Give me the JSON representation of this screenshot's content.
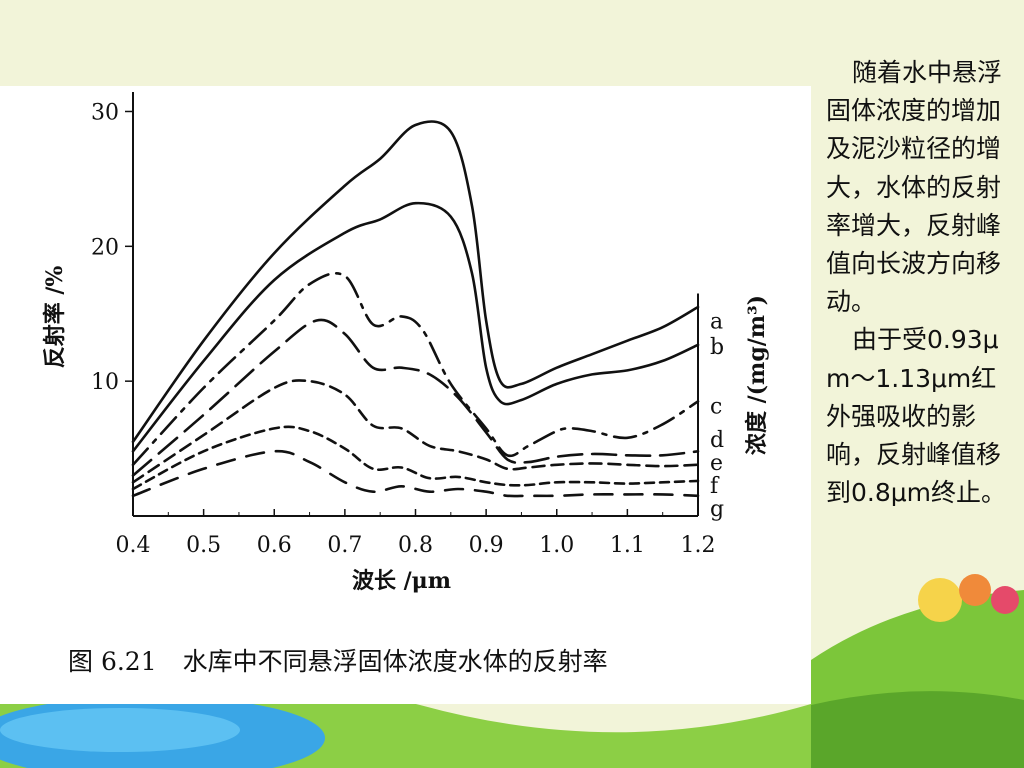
{
  "caption": {
    "figure_number": "图 6.21",
    "title": "水库中不同悬浮固体浓度水体的反射率"
  },
  "side_text": {
    "para1": "随着水中悬浮固体浓度的增加及泥沙粒径的增大，水体的反射率增大，反射峰值向长波方向移动。",
    "para2": "由于受0.93μm～1.13μm红外强吸收的影响，反射峰值移到0.8μm终止。"
  },
  "colors": {
    "background": "#f2f4d9",
    "grass": "#7cc63a",
    "grass_dark": "#5aa62a",
    "water": "#3aa6e6",
    "ink": "#111111"
  },
  "chart_data": {
    "type": "line",
    "xlabel": "波长 /μm",
    "ylabel": "反射率 /%",
    "y2label": "浓度 /(mg/m³)",
    "xlim": [
      0.4,
      1.2
    ],
    "ylim": [
      0,
      31
    ],
    "x_ticks": [
      "0.4",
      "0.5",
      "0.6",
      "0.7",
      "0.8",
      "0.9",
      "1.0",
      "1.1",
      "1.2"
    ],
    "y_ticks": [
      "10",
      "20",
      "30"
    ],
    "y_tick_values": [
      10,
      20,
      30
    ],
    "grid": false,
    "series": [
      {
        "name": "a",
        "style": "solid",
        "x": [
          0.4,
          0.5,
          0.6,
          0.7,
          0.75,
          0.8,
          0.85,
          0.88,
          0.9,
          0.92,
          0.95,
          1.0,
          1.05,
          1.1,
          1.15,
          1.2
        ],
        "y": [
          5.5,
          13.0,
          19.5,
          24.5,
          26.5,
          29.0,
          28.5,
          23.0,
          14.5,
          10.0,
          9.8,
          11.0,
          12.0,
          13.0,
          14.0,
          15.5
        ]
      },
      {
        "name": "b",
        "style": "solid",
        "x": [
          0.4,
          0.5,
          0.6,
          0.7,
          0.75,
          0.8,
          0.85,
          0.88,
          0.9,
          0.92,
          0.95,
          1.0,
          1.05,
          1.1,
          1.15,
          1.2
        ],
        "y": [
          4.8,
          11.5,
          17.5,
          21.0,
          22.0,
          23.2,
          22.2,
          18.0,
          11.0,
          8.5,
          8.6,
          9.8,
          10.5,
          10.8,
          11.5,
          12.7
        ]
      },
      {
        "name": "c",
        "style": "dash-dot",
        "x": [
          0.4,
          0.5,
          0.6,
          0.65,
          0.7,
          0.74,
          0.78,
          0.81,
          0.85,
          0.9,
          0.93,
          0.96,
          1.0,
          1.02,
          1.05,
          1.1,
          1.15,
          1.2
        ],
        "y": [
          3.8,
          9.5,
          14.5,
          17.2,
          17.8,
          14.2,
          14.8,
          13.8,
          9.8,
          6.5,
          4.5,
          5.2,
          6.3,
          6.5,
          6.3,
          5.8,
          6.8,
          8.5
        ]
      },
      {
        "name": "d",
        "style": "long-dash",
        "x": [
          0.4,
          0.5,
          0.6,
          0.66,
          0.7,
          0.74,
          0.78,
          0.82,
          0.86,
          0.9,
          0.93,
          0.96,
          1.0,
          1.05,
          1.1,
          1.15,
          1.2
        ],
        "y": [
          3.0,
          7.5,
          12.2,
          14.5,
          13.5,
          11.0,
          11.0,
          10.5,
          8.8,
          6.2,
          4.2,
          4.0,
          4.4,
          4.6,
          4.5,
          4.5,
          4.8
        ]
      },
      {
        "name": "e",
        "style": "dash",
        "x": [
          0.4,
          0.5,
          0.6,
          0.65,
          0.7,
          0.74,
          0.78,
          0.82,
          0.86,
          0.9,
          0.93,
          0.96,
          1.0,
          1.05,
          1.1,
          1.15,
          1.2
        ],
        "y": [
          2.5,
          6.0,
          9.5,
          10.0,
          9.0,
          6.7,
          6.5,
          5.2,
          4.8,
          4.2,
          3.5,
          3.6,
          3.8,
          3.9,
          3.8,
          3.7,
          3.8
        ]
      },
      {
        "name": "f",
        "style": "short-dash",
        "x": [
          0.4,
          0.5,
          0.6,
          0.65,
          0.7,
          0.74,
          0.78,
          0.82,
          0.86,
          0.9,
          0.93,
          0.96,
          1.0,
          1.05,
          1.1,
          1.15,
          1.2
        ],
        "y": [
          2.0,
          4.8,
          6.5,
          6.3,
          5.0,
          3.5,
          3.6,
          2.8,
          2.9,
          2.5,
          2.3,
          2.3,
          2.5,
          2.5,
          2.4,
          2.5,
          2.6
        ]
      },
      {
        "name": "g",
        "style": "long-dash-2",
        "x": [
          0.4,
          0.5,
          0.6,
          0.65,
          0.7,
          0.74,
          0.78,
          0.82,
          0.86,
          0.9,
          0.93,
          0.96,
          1.0,
          1.05,
          1.1,
          1.15,
          1.2
        ],
        "y": [
          1.5,
          3.5,
          4.8,
          4.0,
          2.5,
          1.8,
          2.2,
          1.8,
          2.0,
          1.8,
          1.5,
          1.5,
          1.5,
          1.6,
          1.6,
          1.6,
          1.5
        ]
      }
    ]
  }
}
